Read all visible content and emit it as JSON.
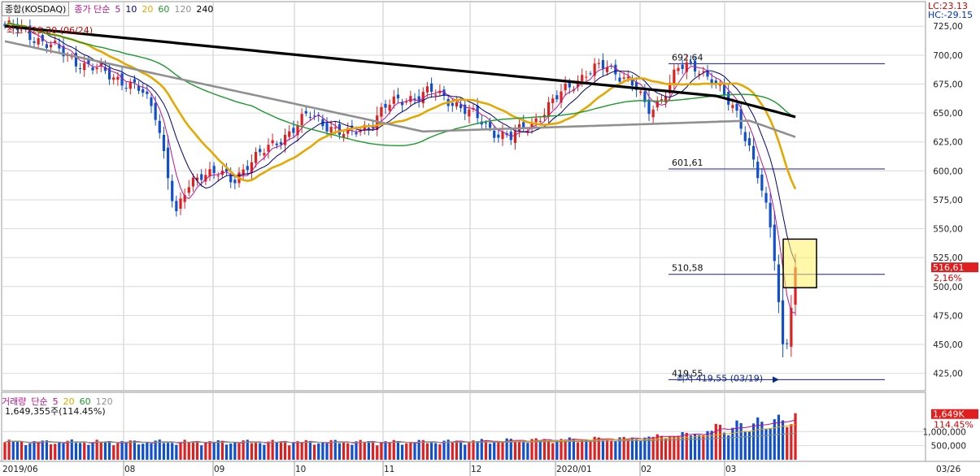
{
  "price_panel": {
    "symbol": "종합(KOSDAQ)",
    "legend_title": "종가 단순",
    "ma_periods": [
      "5",
      "10",
      "20",
      "60",
      "120",
      "240"
    ],
    "ma_colors": [
      "#c01090",
      "#000080",
      "#e6a800",
      "#1a9a2a",
      "#909090",
      "#000000"
    ],
    "lc_label": "LC:23.13",
    "hc_label": "HC:-29.15",
    "high_annotation": "최고 729.20 (06/24)",
    "low_annotation": "최저 419.55 (03/19)",
    "low_level_label": "419.55",
    "current_price": "516.61",
    "current_change": "2.16%",
    "level_lines": [
      {
        "value": 692.64,
        "label": "692.64"
      },
      {
        "value": 601.61,
        "label": "601.61"
      },
      {
        "value": 510.58,
        "label": "510.58"
      },
      {
        "value": 419.55,
        "label": ""
      }
    ]
  },
  "volume_panel": {
    "legend_title": "거래량",
    "legend_sub": "단순",
    "ma_periods": [
      "5",
      "20",
      "60",
      "120"
    ],
    "ma_colors": [
      "#c01090",
      "#e6a800",
      "#1a9a2a",
      "#909090"
    ],
    "summary": "1,649,355주(114.45%)",
    "current_volume": "1,649K",
    "current_ratio": "114.45%"
  },
  "x_labels": [
    "2019/06",
    "08",
    "09",
    "10",
    "11",
    "12",
    "2020/01",
    "02",
    "03",
    "03/26"
  ],
  "chart_data": [
    {
      "type": "candlestick",
      "title": "종합(KOSDAQ)",
      "y_ticks": [
        425,
        450,
        475,
        500,
        525,
        550,
        575,
        600,
        625,
        650,
        675,
        700,
        725
      ],
      "ylim": [
        410,
        735
      ],
      "grid": true,
      "x_range": [
        "2019/06",
        "03/26"
      ],
      "anchor_points": [
        {
          "date": "2019/06",
          "close": 725
        },
        {
          "date": "06/24",
          "high": 729.2
        },
        {
          "date": "08",
          "close": 560,
          "low": 545
        },
        {
          "date": "09",
          "close": 610
        },
        {
          "date": "10",
          "close": 625
        },
        {
          "date": "11",
          "close": 665
        },
        {
          "date": "12",
          "close": 630
        },
        {
          "date": "2020/01",
          "close": 665
        },
        {
          "date": "02",
          "close": 690,
          "high": 692.64
        },
        {
          "date": "03",
          "close": 600
        },
        {
          "date": "03/19",
          "low": 419.55
        },
        {
          "date": "03/26",
          "close": 516.61,
          "change_pct": 2.16
        }
      ],
      "reference_levels": [
        692.64,
        601.61,
        510.58,
        419.55
      ],
      "series": [
        {
          "name": "5",
          "color": "#c01090"
        },
        {
          "name": "10",
          "color": "#000080"
        },
        {
          "name": "20",
          "color": "#e6a800"
        },
        {
          "name": "60",
          "color": "#1a9a2a"
        },
        {
          "name": "120",
          "color": "#909090"
        },
        {
          "name": "240",
          "color": "#000000"
        }
      ]
    },
    {
      "type": "bar",
      "title": "거래량",
      "y_ticks": [
        500000,
        1000000
      ],
      "y_tick_labels": [
        "500,000",
        "1,000,000"
      ],
      "ylim": [
        0,
        1900000
      ],
      "last_value": 1649355,
      "last_ratio_pct": 114.45,
      "series": [
        {
          "name": "5",
          "color": "#c01090"
        },
        {
          "name": "20",
          "color": "#e6a800"
        },
        {
          "name": "60",
          "color": "#1a9a2a"
        },
        {
          "name": "120",
          "color": "#909090"
        }
      ]
    }
  ]
}
